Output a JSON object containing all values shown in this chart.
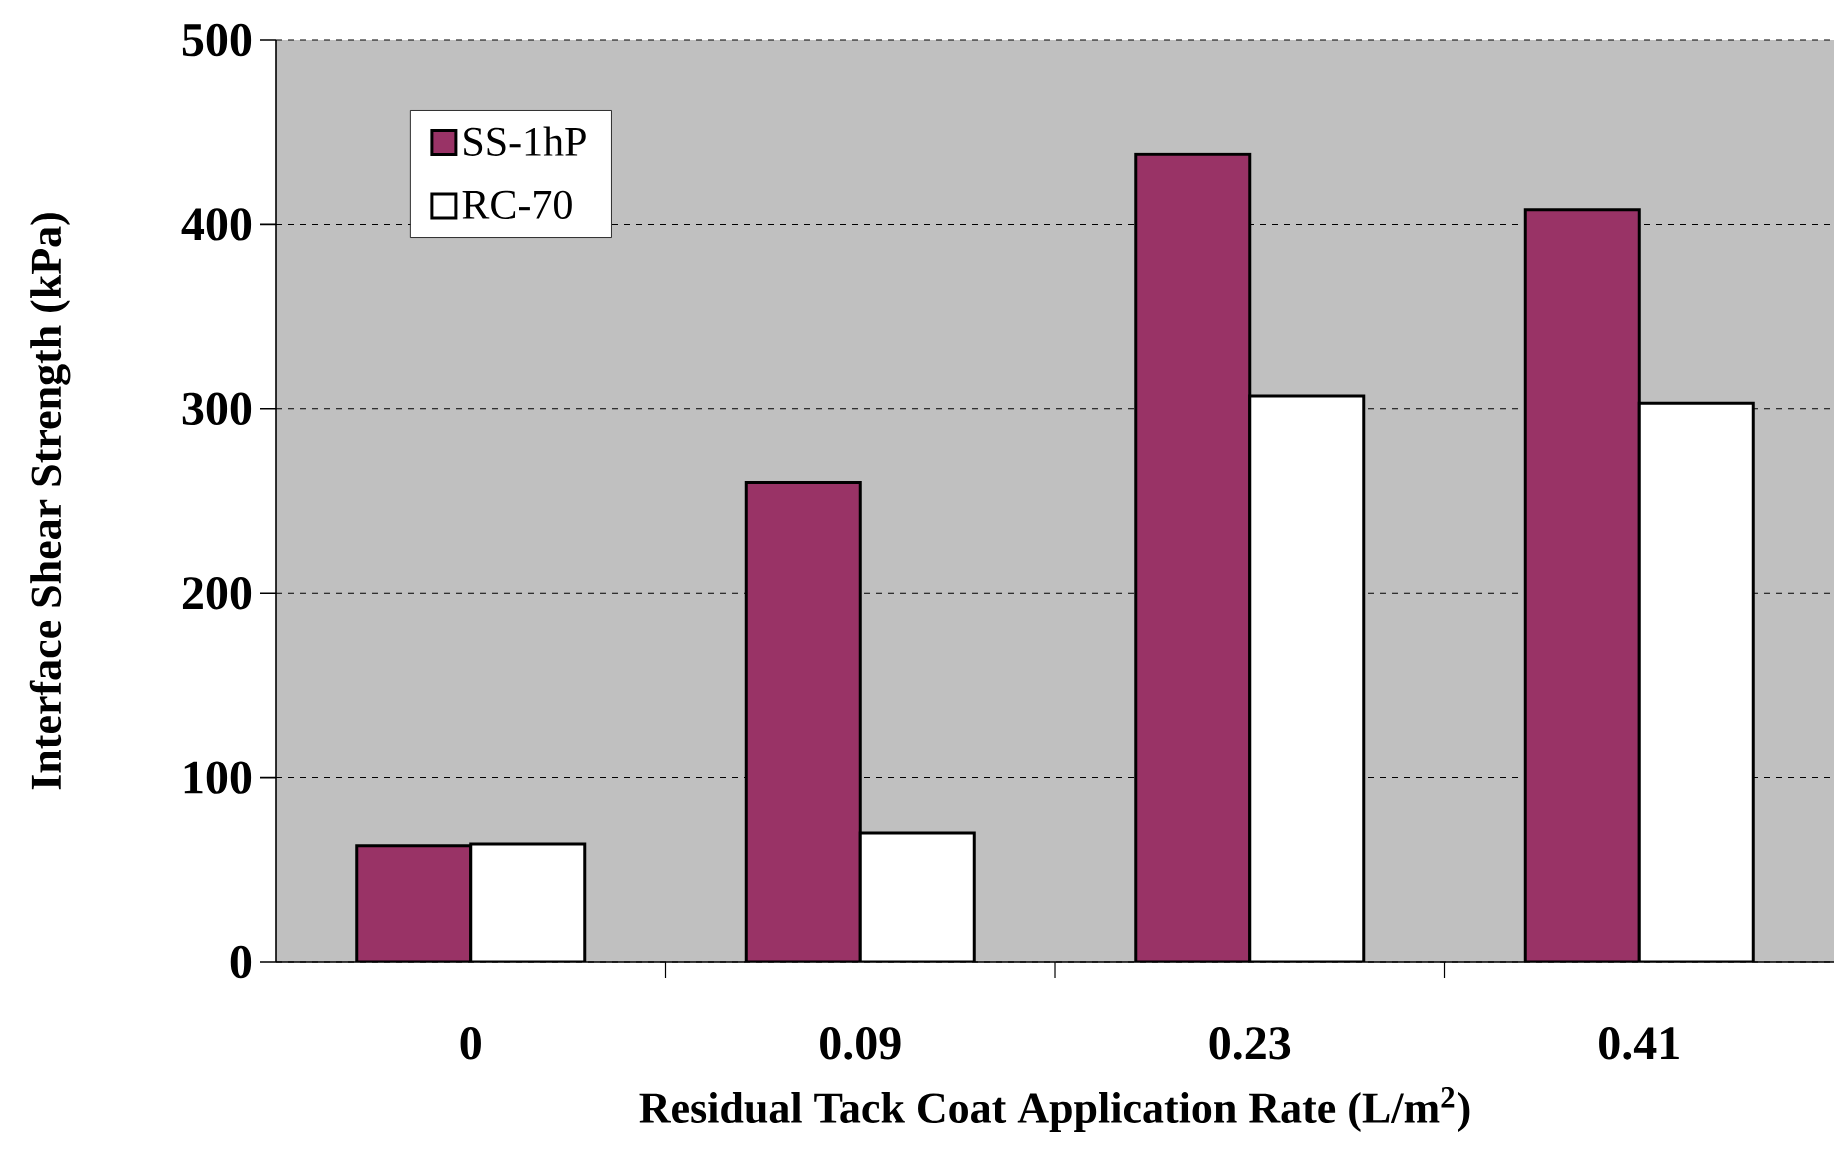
{
  "chart_data": {
    "type": "bar",
    "xlabel": "Residual Tack Coat Application Rate (L/m$^{2}$)",
    "ylabel": "Interface Shear Strength (kPa)",
    "categories": [
      "0",
      "0.09",
      "0.23",
      "0.41"
    ],
    "series": [
      {
        "name": "SS-1hP",
        "color": "#993366",
        "values": [
          63,
          260,
          438,
          408
        ]
      },
      {
        "name": "RC-70",
        "color": "#ffffff",
        "values": [
          64,
          70,
          307,
          303
        ]
      }
    ],
    "ylim": [
      0,
      500
    ],
    "yticks": [
      0,
      100,
      200,
      300,
      400,
      500
    ],
    "grid": "y",
    "legend": "top left"
  }
}
